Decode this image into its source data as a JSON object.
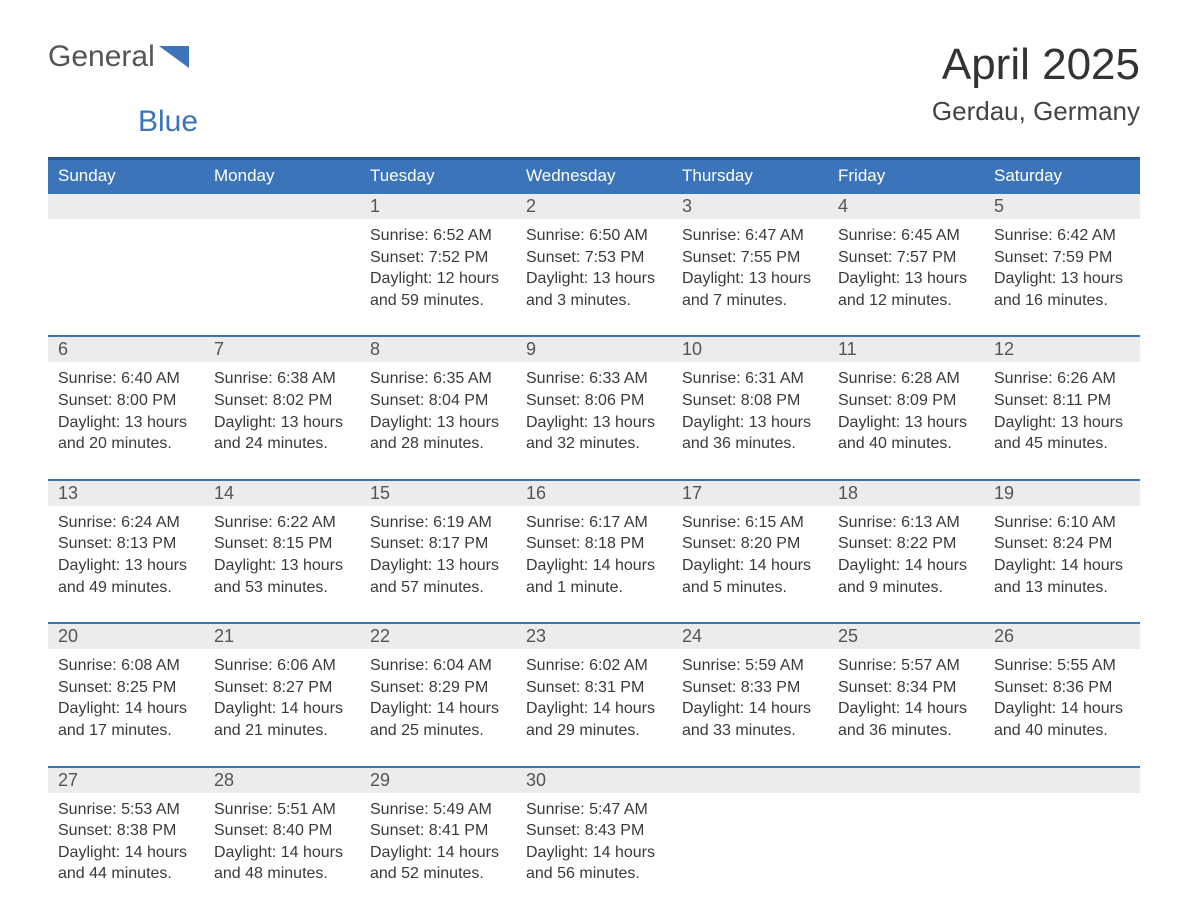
{
  "brand": {
    "part1": "General",
    "part2": "Blue",
    "accent_color": "#3b74b9"
  },
  "title": "April 2025",
  "location": "Gerdau, Germany",
  "colors": {
    "header_bg": "#3b74b9",
    "header_border": "#2c5a94",
    "strip_bg": "#ececec",
    "text": "#333333",
    "background": "#ffffff"
  },
  "days_of_week": [
    "Sunday",
    "Monday",
    "Tuesday",
    "Wednesday",
    "Thursday",
    "Friday",
    "Saturday"
  ],
  "weeks": [
    [
      null,
      null,
      {
        "n": "1",
        "sr": "Sunrise: 6:52 AM",
        "ss": "Sunset: 7:52 PM",
        "d1": "Daylight: 12 hours",
        "d2": "and 59 minutes."
      },
      {
        "n": "2",
        "sr": "Sunrise: 6:50 AM",
        "ss": "Sunset: 7:53 PM",
        "d1": "Daylight: 13 hours",
        "d2": "and 3 minutes."
      },
      {
        "n": "3",
        "sr": "Sunrise: 6:47 AM",
        "ss": "Sunset: 7:55 PM",
        "d1": "Daylight: 13 hours",
        "d2": "and 7 minutes."
      },
      {
        "n": "4",
        "sr": "Sunrise: 6:45 AM",
        "ss": "Sunset: 7:57 PM",
        "d1": "Daylight: 13 hours",
        "d2": "and 12 minutes."
      },
      {
        "n": "5",
        "sr": "Sunrise: 6:42 AM",
        "ss": "Sunset: 7:59 PM",
        "d1": "Daylight: 13 hours",
        "d2": "and 16 minutes."
      }
    ],
    [
      {
        "n": "6",
        "sr": "Sunrise: 6:40 AM",
        "ss": "Sunset: 8:00 PM",
        "d1": "Daylight: 13 hours",
        "d2": "and 20 minutes."
      },
      {
        "n": "7",
        "sr": "Sunrise: 6:38 AM",
        "ss": "Sunset: 8:02 PM",
        "d1": "Daylight: 13 hours",
        "d2": "and 24 minutes."
      },
      {
        "n": "8",
        "sr": "Sunrise: 6:35 AM",
        "ss": "Sunset: 8:04 PM",
        "d1": "Daylight: 13 hours",
        "d2": "and 28 minutes."
      },
      {
        "n": "9",
        "sr": "Sunrise: 6:33 AM",
        "ss": "Sunset: 8:06 PM",
        "d1": "Daylight: 13 hours",
        "d2": "and 32 minutes."
      },
      {
        "n": "10",
        "sr": "Sunrise: 6:31 AM",
        "ss": "Sunset: 8:08 PM",
        "d1": "Daylight: 13 hours",
        "d2": "and 36 minutes."
      },
      {
        "n": "11",
        "sr": "Sunrise: 6:28 AM",
        "ss": "Sunset: 8:09 PM",
        "d1": "Daylight: 13 hours",
        "d2": "and 40 minutes."
      },
      {
        "n": "12",
        "sr": "Sunrise: 6:26 AM",
        "ss": "Sunset: 8:11 PM",
        "d1": "Daylight: 13 hours",
        "d2": "and 45 minutes."
      }
    ],
    [
      {
        "n": "13",
        "sr": "Sunrise: 6:24 AM",
        "ss": "Sunset: 8:13 PM",
        "d1": "Daylight: 13 hours",
        "d2": "and 49 minutes."
      },
      {
        "n": "14",
        "sr": "Sunrise: 6:22 AM",
        "ss": "Sunset: 8:15 PM",
        "d1": "Daylight: 13 hours",
        "d2": "and 53 minutes."
      },
      {
        "n": "15",
        "sr": "Sunrise: 6:19 AM",
        "ss": "Sunset: 8:17 PM",
        "d1": "Daylight: 13 hours",
        "d2": "and 57 minutes."
      },
      {
        "n": "16",
        "sr": "Sunrise: 6:17 AM",
        "ss": "Sunset: 8:18 PM",
        "d1": "Daylight: 14 hours",
        "d2": "and 1 minute."
      },
      {
        "n": "17",
        "sr": "Sunrise: 6:15 AM",
        "ss": "Sunset: 8:20 PM",
        "d1": "Daylight: 14 hours",
        "d2": "and 5 minutes."
      },
      {
        "n": "18",
        "sr": "Sunrise: 6:13 AM",
        "ss": "Sunset: 8:22 PM",
        "d1": "Daylight: 14 hours",
        "d2": "and 9 minutes."
      },
      {
        "n": "19",
        "sr": "Sunrise: 6:10 AM",
        "ss": "Sunset: 8:24 PM",
        "d1": "Daylight: 14 hours",
        "d2": "and 13 minutes."
      }
    ],
    [
      {
        "n": "20",
        "sr": "Sunrise: 6:08 AM",
        "ss": "Sunset: 8:25 PM",
        "d1": "Daylight: 14 hours",
        "d2": "and 17 minutes."
      },
      {
        "n": "21",
        "sr": "Sunrise: 6:06 AM",
        "ss": "Sunset: 8:27 PM",
        "d1": "Daylight: 14 hours",
        "d2": "and 21 minutes."
      },
      {
        "n": "22",
        "sr": "Sunrise: 6:04 AM",
        "ss": "Sunset: 8:29 PM",
        "d1": "Daylight: 14 hours",
        "d2": "and 25 minutes."
      },
      {
        "n": "23",
        "sr": "Sunrise: 6:02 AM",
        "ss": "Sunset: 8:31 PM",
        "d1": "Daylight: 14 hours",
        "d2": "and 29 minutes."
      },
      {
        "n": "24",
        "sr": "Sunrise: 5:59 AM",
        "ss": "Sunset: 8:33 PM",
        "d1": "Daylight: 14 hours",
        "d2": "and 33 minutes."
      },
      {
        "n": "25",
        "sr": "Sunrise: 5:57 AM",
        "ss": "Sunset: 8:34 PM",
        "d1": "Daylight: 14 hours",
        "d2": "and 36 minutes."
      },
      {
        "n": "26",
        "sr": "Sunrise: 5:55 AM",
        "ss": "Sunset: 8:36 PM",
        "d1": "Daylight: 14 hours",
        "d2": "and 40 minutes."
      }
    ],
    [
      {
        "n": "27",
        "sr": "Sunrise: 5:53 AM",
        "ss": "Sunset: 8:38 PM",
        "d1": "Daylight: 14 hours",
        "d2": "and 44 minutes."
      },
      {
        "n": "28",
        "sr": "Sunrise: 5:51 AM",
        "ss": "Sunset: 8:40 PM",
        "d1": "Daylight: 14 hours",
        "d2": "and 48 minutes."
      },
      {
        "n": "29",
        "sr": "Sunrise: 5:49 AM",
        "ss": "Sunset: 8:41 PM",
        "d1": "Daylight: 14 hours",
        "d2": "and 52 minutes."
      },
      {
        "n": "30",
        "sr": "Sunrise: 5:47 AM",
        "ss": "Sunset: 8:43 PM",
        "d1": "Daylight: 14 hours",
        "d2": "and 56 minutes."
      },
      null,
      null,
      null
    ]
  ]
}
